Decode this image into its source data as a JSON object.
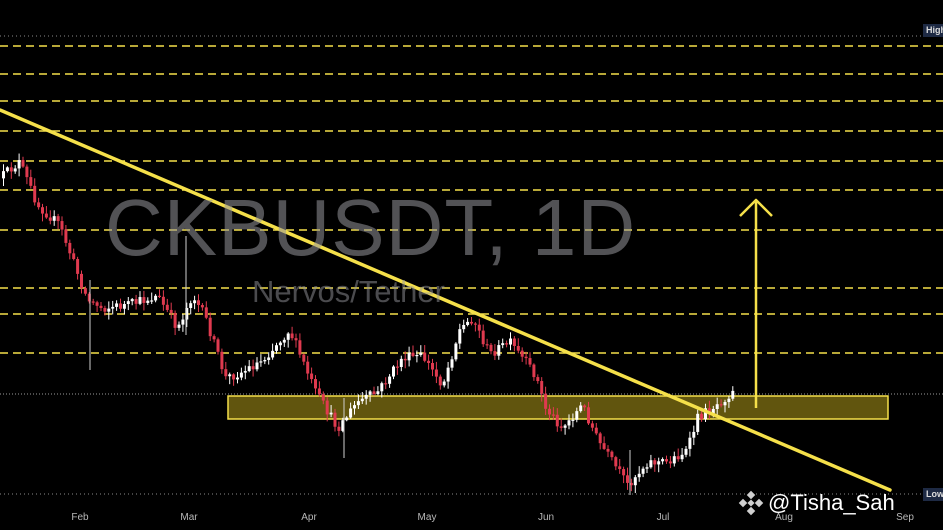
{
  "chart_data": {
    "type": "candlestick",
    "watermark": {
      "symbol": "CKBUSDT, 1D",
      "pair_name": "Nervos/Tether"
    },
    "x_ticks": [
      "Feb",
      "Mar",
      "Apr",
      "May",
      "Jun",
      "Jul",
      "Aug",
      "Sep"
    ],
    "price_scale_labels": {
      "high": "High",
      "low": "Low"
    },
    "colors": {
      "background": "#000000",
      "up": "#ffffff",
      "down": "#e03a4f",
      "trendline": "#f5e04a",
      "levels": "#f5e04a",
      "zone_fill": "#6b5e10",
      "zone_border": "#f5e04a",
      "arrow": "#f5e04a"
    },
    "annotations": {
      "descending_trendline": true,
      "horizontal_resistance_levels": 10,
      "support_zone": true,
      "breakout_target_arrow": "up"
    },
    "author_watermark": "@Tisha_Sah"
  }
}
